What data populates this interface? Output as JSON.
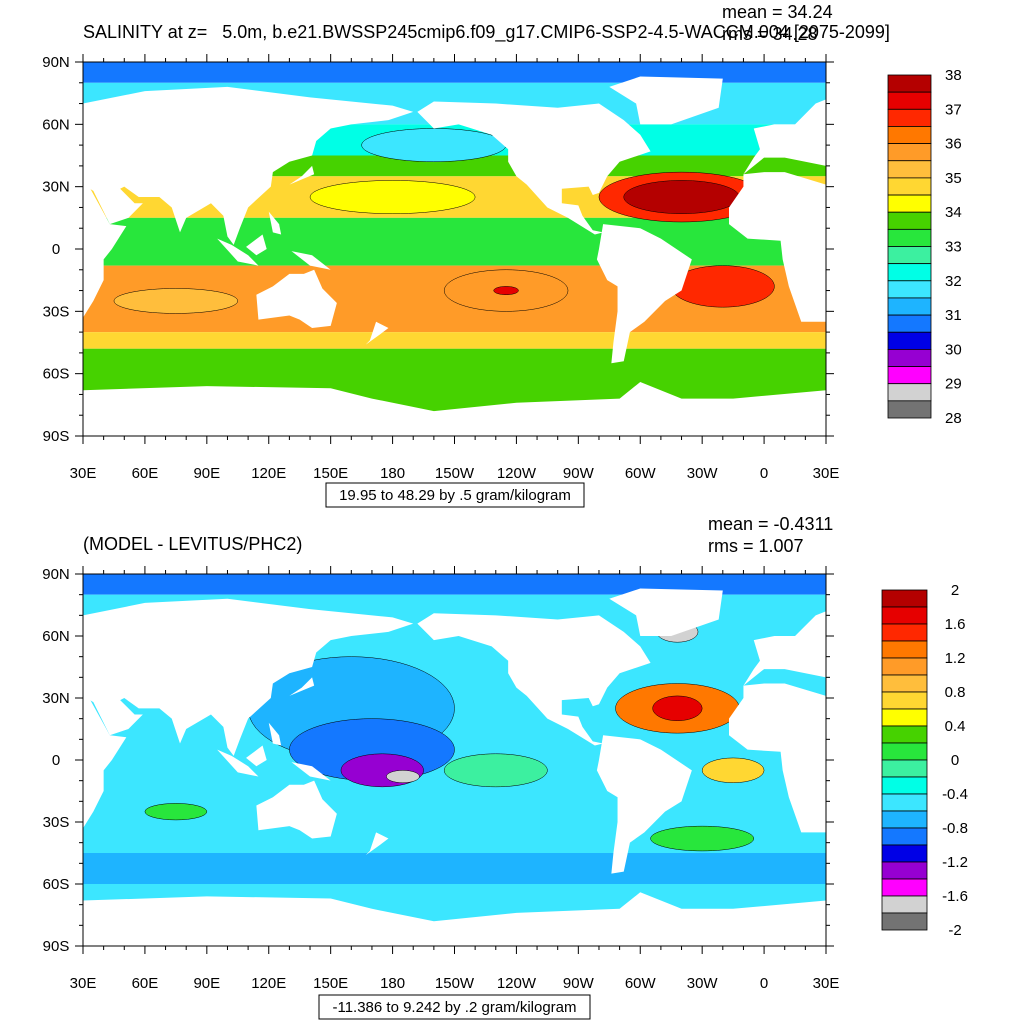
{
  "colorbar_colors": [
    "#b40000",
    "#e60000",
    "#ff2800",
    "#ff7800",
    "#ff9b28",
    "#ffbe3c",
    "#ffd732",
    "#ffff00",
    "#46d200",
    "#28e63c",
    "#3cf0a0",
    "#00ffe6",
    "#3ce6ff",
    "#1eb4ff",
    "#1478ff",
    "#0000e6",
    "#9600d2",
    "#ff00ff",
    "#d2d2d2",
    "#737373"
  ],
  "lat_labels": [
    "90N",
    "60N",
    "30N",
    "0",
    "30S",
    "60S",
    "90S"
  ],
  "lon_labels": [
    "30E",
    "60E",
    "90E",
    "120E",
    "150E",
    "180",
    "150W",
    "120W",
    "90W",
    "60W",
    "30W",
    "0",
    "30E"
  ],
  "panels": [
    {
      "title": "SALINITY at z=   5.0m, b.e21.BWSSP245cmip6.f09_g17.CMIP6-SSP2-4.5-WACCM.004 [2075-2099]",
      "mean": "mean = 34.24",
      "rms": "rms = 34.28",
      "colorbar_labels": [
        "38",
        "37",
        "36",
        "35",
        "34",
        "33",
        "32",
        "31",
        "30",
        "29",
        "28"
      ],
      "info": "19.95 to 48.29 by .5 gram/kilogram"
    },
    {
      "title": "(MODEL - LEVITUS/PHC2)",
      "mean": "mean = -0.4311",
      "rms": "rms = 1.007",
      "colorbar_labels": [
        "2",
        "1.6",
        "1.2",
        "0.8",
        "0.4",
        "0",
        "-0.4",
        "-0.8",
        "-1.2",
        "-1.6",
        "-2"
      ],
      "info": "-11.386 to 9.242 by .2 gram/kilogram"
    }
  ]
}
